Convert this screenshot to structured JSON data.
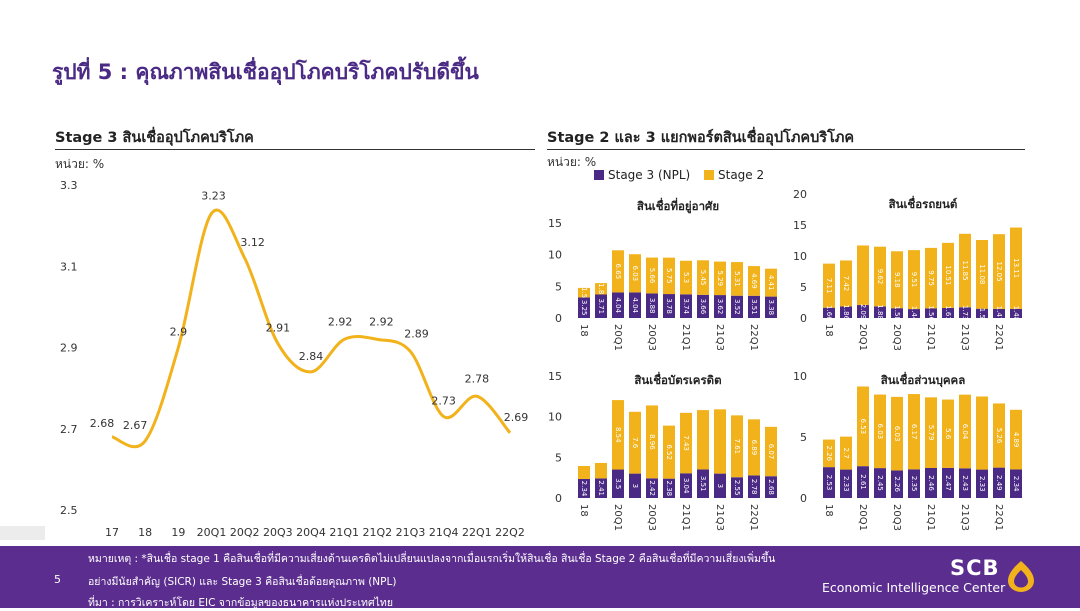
{
  "page": {
    "title": "รูปที่ 5 : คุณภาพสินเชื่ออุปโภคบริโภคปรับดีขึ้น",
    "left_heading": "Stage 3 สินเชื่ออุปโภคบริโภค",
    "right_heading": "Stage 2 และ 3 แยกพอร์ตสินเชื่ออุปโภคบริโภค",
    "unit_left": "หน่วย: %",
    "unit_right": "หน่วย: %",
    "notes": [
      "หมายเหตุ : *สินเชื่อ stage 1 คือสินเชื่อที่มีความเสี่ยงด้านเครดิตไม่เปลี่ยนแปลงจากเมื่อแรกเริ่มให้สินเชื่อ สินเชื่อ Stage 2 คือสินเชื่อที่มีความเสี่ยงเพิ่มขึ้น",
      "อย่างมีนัยสำคัญ (SICR) และ Stage 3 คือสินเชื่อด้อยคุณภาพ (NPL)",
      "ที่มา : การวิเคราะห์โดย EIC จากข้อมูลของธนาคารแห่งประเทศไทย"
    ],
    "page_number": "5",
    "brand": "SCB",
    "brand_sub": "Economic Intelligence Center",
    "colors": {
      "purple": "#4a2a84",
      "gold": "#f2b21b",
      "footer": "#5b2d8e"
    }
  },
  "chart_data": [
    {
      "type": "line",
      "title": "Stage 3 สินเชื่ออุปโภคบริโภค",
      "categories": [
        "17",
        "18",
        "19",
        "20Q1",
        "20Q2",
        "20Q3",
        "20Q4",
        "21Q1",
        "21Q2",
        "21Q3",
        "21Q4",
        "22Q1",
        "22Q2"
      ],
      "yticks": [
        "3.3",
        "3.1",
        "2.9",
        "2.7",
        "2.5"
      ],
      "ylim": [
        2.5,
        3.3
      ],
      "series": [
        {
          "values": [
            2.68,
            2.67,
            2.9,
            3.23,
            3.12,
            2.91,
            2.84,
            2.92,
            2.92,
            2.89,
            2.73,
            2.78,
            2.69
          ],
          "labels": [
            "2.68",
            "2.67",
            "2.9",
            "3.23",
            "3.12",
            "2.91",
            "2.84",
            "2.92",
            "2.92",
            "2.89",
            "2.73",
            "2.78",
            "2.69"
          ]
        }
      ],
      "color": "#f2b21b",
      "grid": false
    },
    {
      "type": "bar",
      "stacked": true,
      "legend": [
        "Stage 3 (NPL)",
        "Stage 2"
      ],
      "legend_placement": "top",
      "panels": [
        {
          "title": "สินเชื่อที่อยู่อาศัย",
          "ylim": [
            0,
            15
          ],
          "yticks": [
            "15",
            "10",
            "5",
            "0"
          ],
          "x_labels": [
            "18",
            "",
            "20Q1",
            "",
            "20Q3",
            "",
            "21Q1",
            "",
            "21Q3",
            "",
            "22Q1",
            ""
          ],
          "npl": [
            3.25,
            3.71,
            4.04,
            4.04,
            3.88,
            3.78,
            3.74,
            3.66,
            3.62,
            3.52,
            3.51,
            3.38
          ],
          "npl_labels": [
            "3.25",
            "3.71",
            "4.04",
            "4.04",
            "3.88",
            "3.78",
            "3.74",
            "3.66",
            "3.62",
            "3.52",
            "3.51",
            "3.38"
          ],
          "stage2": [
            1.5,
            1.8,
            6.65,
            6.03,
            5.66,
            5.75,
            5.3,
            5.45,
            5.29,
            5.31,
            4.69,
            4.41
          ],
          "stage2_labels": [
            "1.5",
            "1.8",
            "6.65",
            "6.03",
            "5.66",
            "5.75",
            "5.3",
            "5.45",
            "5.29",
            "5.31",
            "4.69",
            "4.41"
          ]
        },
        {
          "title": "สินเชื่อรถยนต์",
          "ylim": [
            0,
            20
          ],
          "yticks": [
            "20",
            "15",
            "10",
            "5",
            "0"
          ],
          "x_labels": [
            "18",
            "",
            "20Q1",
            "",
            "20Q3",
            "",
            "21Q1",
            "",
            "21Q3",
            "",
            "22Q1",
            ""
          ],
          "npl": [
            1.66,
            1.86,
            2.09,
            1.88,
            1.58,
            1.44,
            1.56,
            1.61,
            1.73,
            1.5,
            1.47,
            1.48
          ],
          "npl_labels": [
            "1.66",
            "1.86",
            "2.09",
            "1.88",
            "1.58",
            "1.44",
            "1.56",
            "1.61",
            "1.73",
            "1.5",
            "1.47",
            "1.48"
          ],
          "stage2": [
            7.11,
            7.42,
            9.61,
            9.62,
            9.18,
            9.51,
            9.75,
            10.51,
            11.85,
            11.08,
            12.05,
            13.11
          ],
          "stage2_labels": [
            "7.11",
            "7.42",
            "",
            "9.62",
            "9.18",
            "9.51",
            "9.75",
            "10.51",
            "11.85",
            "11.08",
            "12.05",
            "13.11"
          ]
        },
        {
          "title": "สินเชื่อบัตรเครดิต",
          "ylim": [
            0,
            15
          ],
          "yticks": [
            "15",
            "10",
            "5",
            "0"
          ],
          "x_labels": [
            "18",
            "",
            "20Q1",
            "",
            "20Q3",
            "",
            "21Q1",
            "",
            "21Q3",
            "",
            "22Q1",
            ""
          ],
          "npl": [
            2.34,
            2.41,
            3.5,
            3,
            2.42,
            2.38,
            3.04,
            3.51,
            3,
            2.55,
            2.78,
            2.68
          ],
          "npl_labels": [
            "2.34",
            "2.41",
            "3.5",
            "3",
            "2.42",
            "2.38",
            "3.04",
            "3.51",
            "3",
            "2.55",
            "2.78",
            "2.68"
          ],
          "stage2": [
            1.6,
            1.9,
            8.54,
            7.6,
            8.96,
            6.52,
            7.43,
            7.3,
            7.9,
            7.61,
            6.89,
            6.07
          ],
          "stage2_labels": [
            "",
            "",
            "8.54",
            "7.6",
            "8.96",
            "6.52",
            "7.43",
            "",
            "",
            "7.61",
            "6.89",
            "6.07"
          ]
        },
        {
          "title": "สินเชื่อส่วนบุคคล",
          "ylim": [
            0,
            10
          ],
          "yticks": [
            "10",
            "5",
            "0"
          ],
          "x_labels": [
            "18",
            "",
            "20Q1",
            "",
            "20Q3",
            "",
            "21Q1",
            "",
            "21Q3",
            "",
            "22Q1",
            ""
          ],
          "npl": [
            2.53,
            2.33,
            2.61,
            2.45,
            2.26,
            2.35,
            2.46,
            2.47,
            2.43,
            2.33,
            2.49,
            2.34
          ],
          "npl_labels": [
            "2.53",
            "2.33",
            "2.61",
            "2.45",
            "2.26",
            "2.35",
            "2.46",
            "2.47",
            "2.43",
            "2.33",
            "2.49",
            "2.34"
          ],
          "stage2": [
            2.26,
            2.7,
            6.53,
            6.03,
            6.03,
            6.17,
            5.79,
            5.6,
            6.04,
            5.99,
            5.26,
            4.89
          ],
          "stage2_labels": [
            "2.26",
            "2.7",
            "6.53",
            "6.03",
            "6.03",
            "6.17",
            "5.79",
            "5.6",
            "6.04",
            "",
            "5.26",
            "4.89"
          ]
        }
      ]
    }
  ]
}
